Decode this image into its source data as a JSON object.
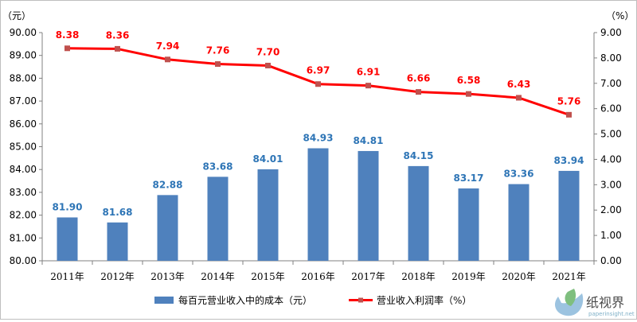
{
  "chart_data": {
    "type": "bar+line",
    "categories": [
      "2011年",
      "2012年",
      "2013年",
      "2014年",
      "2015年",
      "2016年",
      "2017年",
      "2018年",
      "2019年",
      "2020年",
      "2021年"
    ],
    "series": [
      {
        "name": "每百元营业收入中的成本（元）",
        "type": "bar",
        "axis": "left",
        "color": "#4f81bd",
        "values": [
          81.9,
          81.68,
          82.88,
          83.68,
          84.01,
          84.93,
          84.81,
          84.15,
          83.17,
          83.36,
          83.94
        ],
        "labels": [
          "81.90",
          "81.68",
          "82.88",
          "83.68",
          "84.01",
          "84.93",
          "84.81",
          "84.15",
          "83.17",
          "83.36",
          "83.94"
        ]
      },
      {
        "name": "营业收入利润率（%）",
        "type": "line",
        "axis": "right",
        "color": "#ff0000",
        "marker_color": "#c0504d",
        "values": [
          8.38,
          8.36,
          7.94,
          7.76,
          7.7,
          6.97,
          6.91,
          6.66,
          6.58,
          6.43,
          5.76
        ],
        "labels": [
          "8.38",
          "8.36",
          "7.94",
          "7.76",
          "7.70",
          "6.97",
          "6.91",
          "6.66",
          "6.58",
          "6.43",
          "5.76"
        ]
      }
    ],
    "y_left": {
      "unit": "（元）",
      "ylim": [
        80.0,
        90.0
      ],
      "ticks": [
        "80.00",
        "81.00",
        "82.00",
        "83.00",
        "84.00",
        "85.00",
        "86.00",
        "87.00",
        "88.00",
        "89.00",
        "90.00"
      ]
    },
    "y_right": {
      "unit": "（%）",
      "ylim": [
        0.0,
        9.0
      ],
      "ticks": [
        "0.00",
        "1.00",
        "2.00",
        "3.00",
        "4.00",
        "5.00",
        "6.00",
        "7.00",
        "8.00",
        "9.00"
      ]
    },
    "grid": false,
    "legend_position": "bottom"
  },
  "watermark": {
    "text": "纸视界",
    "url": "paperinsight.net"
  }
}
